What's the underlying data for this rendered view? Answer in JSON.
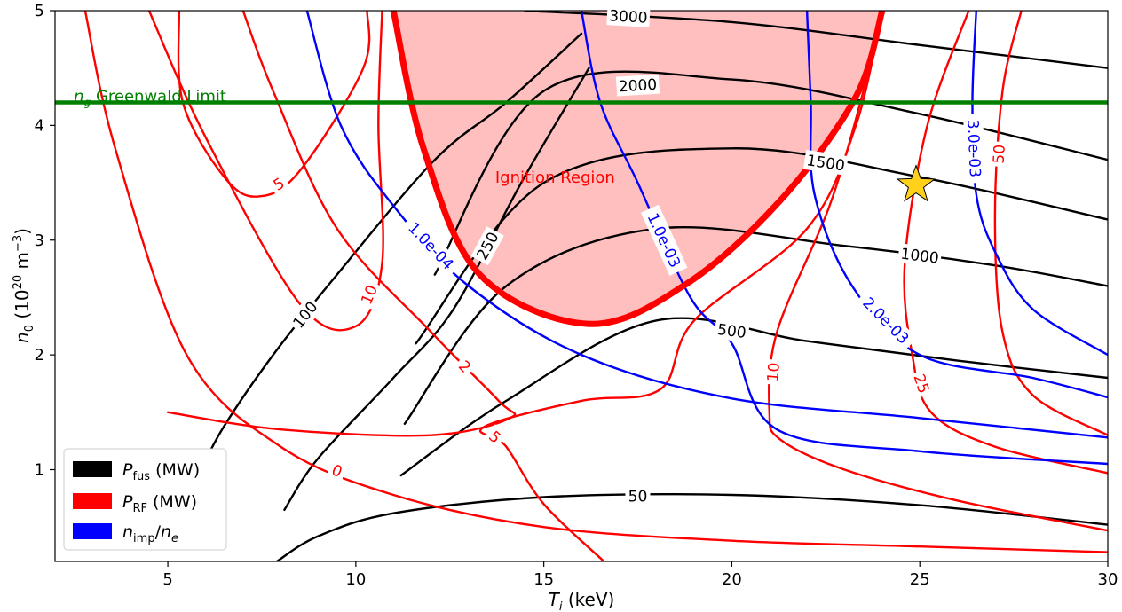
{
  "chart_data": {
    "type": "contour",
    "xlabel": "Ti (keV)",
    "ylabel": "n0 (10^20 m^-3)",
    "xlim": [
      2,
      30
    ],
    "ylim": [
      0.2,
      5
    ],
    "x_ticks": [
      5,
      10,
      15,
      20,
      25,
      30
    ],
    "y_ticks": [
      1,
      2,
      3,
      4,
      5
    ],
    "legend": {
      "position": "lower-left",
      "entries": [
        {
          "name": "P_fus (MW)",
          "color": "#000000"
        },
        {
          "name": "P_RF (MW)",
          "color": "#ff0000"
        },
        {
          "name": "n_imp/n_e",
          "color": "#0000ff"
        }
      ]
    },
    "series": [
      {
        "name": "P_fus (MW)",
        "color": "#000000",
        "contours": [
          {
            "level": "50",
            "points": [
              [
                7.9,
                0.2
              ],
              [
                9,
                0.42
              ],
              [
                11,
                0.62
              ],
              [
                15,
                0.76
              ],
              [
                20,
                0.78
              ],
              [
                25,
                0.69
              ],
              [
                30,
                0.52
              ]
            ]
          },
          {
            "level": "100",
            "points": [
              [
                5.8,
                0.95
              ],
              [
                6.5,
                1.38
              ],
              [
                7.8,
                2.0
              ],
              [
                9.5,
                2.7
              ],
              [
                12.1,
                3.7
              ],
              [
                14,
                4.2
              ],
              [
                16,
                4.8
              ]
            ]
          },
          {
            "level": "250",
            "points": [
              [
                8.1,
                0.65
              ],
              [
                9,
                1.1
              ],
              [
                11,
                1.8
              ],
              [
                12.6,
                2.4
              ],
              [
                14.4,
                3.5
              ],
              [
                16.2,
                4.5
              ]
            ]
          },
          {
            "level": "500",
            "points": [
              [
                11.2,
                0.95
              ],
              [
                14,
                1.6
              ],
              [
                18,
                2.3
              ],
              [
                22,
                2.12
              ],
              [
                26,
                1.95
              ],
              [
                30,
                1.8
              ]
            ]
          },
          {
            "level": "1000",
            "points": [
              [
                11.3,
                1.4
              ],
              [
                14,
                2.6
              ],
              [
                18,
                3.1
              ],
              [
                23,
                2.95
              ],
              [
                27,
                2.78
              ],
              [
                30,
                2.6
              ]
            ]
          },
          {
            "level": "1500",
            "points": [
              [
                11.6,
                2.1
              ],
              [
                15,
                3.5
              ],
              [
                20,
                3.8
              ],
              [
                25,
                3.55
              ],
              [
                30,
                3.18
              ]
            ]
          },
          {
            "level": "2000",
            "points": [
              [
                12.1,
                2.7
              ],
              [
                15,
                4.3
              ],
              [
                20,
                4.4
              ],
              [
                25,
                4.1
              ],
              [
                30,
                3.7
              ]
            ]
          },
          {
            "level": "3000",
            "points": [
              [
                14.5,
                5.0
              ],
              [
                20,
                4.9
              ],
              [
                25,
                4.7
              ],
              [
                30,
                4.5
              ]
            ]
          }
        ]
      },
      {
        "name": "P_RF (MW)",
        "color": "#ff0000",
        "contours": [
          {
            "level": "0",
            "points": [
              [
                2.8,
                5.0
              ],
              [
                3.6,
                3.8
              ],
              [
                5.5,
                2.0
              ],
              [
                8,
                1.2
              ],
              [
                11,
                0.78
              ],
              [
                15,
                0.5
              ],
              [
                20,
                0.38
              ],
              [
                25,
                0.33
              ],
              [
                30,
                0.28
              ]
            ]
          },
          {
            "level": "10",
            "points": [
              [
                4.5,
                5.0
              ],
              [
                6,
                3.9
              ],
              [
                8.5,
                2.45
              ],
              [
                10,
                2.25
              ],
              [
                10.7,
                2.8
              ],
              [
                10.6,
                4.0
              ],
              [
                10.7,
                5.0
              ]
            ]
          },
          {
            "level": "5",
            "points": [
              [
                5.3,
                5.0
              ],
              [
                5.4,
                4.2
              ],
              [
                6.5,
                3.55
              ],
              [
                7.4,
                3.38
              ],
              [
                8.5,
                3.6
              ],
              [
                10.2,
                4.5
              ],
              [
                10.3,
                5.0
              ]
            ]
          },
          {
            "level": "2",
            "points": [
              [
                7.0,
                5.0
              ],
              [
                7.8,
                4.3
              ],
              [
                9.5,
                3.1
              ],
              [
                12,
                2.2
              ],
              [
                13.8,
                1.6
              ],
              [
                14.1,
                1.45
              ],
              [
                12,
                1.3
              ],
              [
                8,
                1.35
              ],
              [
                5,
                1.5
              ]
            ]
          },
          {
            "level": "5",
            "points": [
              [
                16.6,
                0.2
              ],
              [
                15,
                0.7
              ],
              [
                14,
                1.2
              ],
              [
                13.4,
                1.37
              ],
              [
                16,
                1.6
              ],
              [
                18.1,
                1.7
              ],
              [
                19,
                2.3
              ],
              [
                22,
                3.1
              ],
              [
                23.3,
                4.0
              ],
              [
                24,
                5.0
              ]
            ]
          },
          {
            "level": "10",
            "points": [
              [
                30,
                0.47
              ],
              [
                26,
                0.73
              ],
              [
                23,
                1.0
              ],
              [
                21.3,
                1.26
              ],
              [
                21,
                1.5
              ],
              [
                21.2,
                2.2
              ],
              [
                22.6,
                3.3
              ],
              [
                23.5,
                4.3
              ],
              [
                24,
                5.0
              ]
            ]
          },
          {
            "level": "25",
            "points": [
              [
                30,
                0.97
              ],
              [
                27,
                1.2
              ],
              [
                25.3,
                1.5
              ],
              [
                24.8,
                2.0
              ],
              [
                24.6,
                2.8
              ],
              [
                25.2,
                4.0
              ],
              [
                26.3,
                5.0
              ]
            ]
          },
          {
            "level": "50",
            "points": [
              [
                30,
                1.3
              ],
              [
                28,
                1.65
              ],
              [
                27.2,
                2.2
              ],
              [
                27,
                3.2
              ],
              [
                27.2,
                4.3
              ],
              [
                27.7,
                5.0
              ]
            ]
          }
        ]
      },
      {
        "name": "n_imp/n_e",
        "color": "#0000ff",
        "contours": [
          {
            "level": "1.0e-04",
            "points": [
              [
                8.7,
                5.0
              ],
              [
                9.6,
                4.0
              ],
              [
                11,
                3.3
              ],
              [
                13,
                2.6
              ],
              [
                16,
                2.0
              ],
              [
                20,
                1.62
              ],
              [
                25,
                1.45
              ],
              [
                30,
                1.28
              ]
            ]
          },
          {
            "level": "1.0e-03",
            "points": [
              [
                16.0,
                5.0
              ],
              [
                16.5,
                4.2
              ],
              [
                17.5,
                3.5
              ],
              [
                18.9,
                2.5
              ],
              [
                20,
                2.1
              ],
              [
                21.2,
                1.35
              ],
              [
                25,
                1.16
              ],
              [
                30,
                1.05
              ]
            ]
          },
          {
            "level": "2.0e-03",
            "points": [
              [
                22.0,
                5.0
              ],
              [
                22.1,
                4.2
              ],
              [
                22.2,
                3.4
              ],
              [
                23.2,
                2.6
              ],
              [
                25,
                2.0
              ],
              [
                28,
                1.8
              ],
              [
                30,
                1.63
              ]
            ]
          },
          {
            "level": "3.0e-03",
            "points": [
              [
                26.5,
                5.0
              ],
              [
                26.4,
                4.2
              ],
              [
                26.5,
                3.4
              ],
              [
                27,
                2.9
              ],
              [
                28,
                2.4
              ],
              [
                30,
                2.0
              ]
            ]
          }
        ]
      }
    ],
    "ignition_region": {
      "label": "Ignition Region",
      "boundary": [
        [
          11.0,
          5.0
        ],
        [
          11.8,
          3.8
        ],
        [
          13.3,
          2.7
        ],
        [
          16.2,
          2.27
        ],
        [
          18.8,
          2.62
        ],
        [
          21.3,
          3.35
        ],
        [
          23.3,
          4.25
        ],
        [
          24.0,
          5.0
        ]
      ]
    },
    "greenwald_limit": {
      "label_prefix": "n",
      "label_sub": "g",
      "label": " Greenwald Limit",
      "y": 4.2,
      "color": "#008000"
    },
    "operating_point": {
      "x": 24.9,
      "y": 3.48,
      "color": "#ffd11a"
    }
  }
}
